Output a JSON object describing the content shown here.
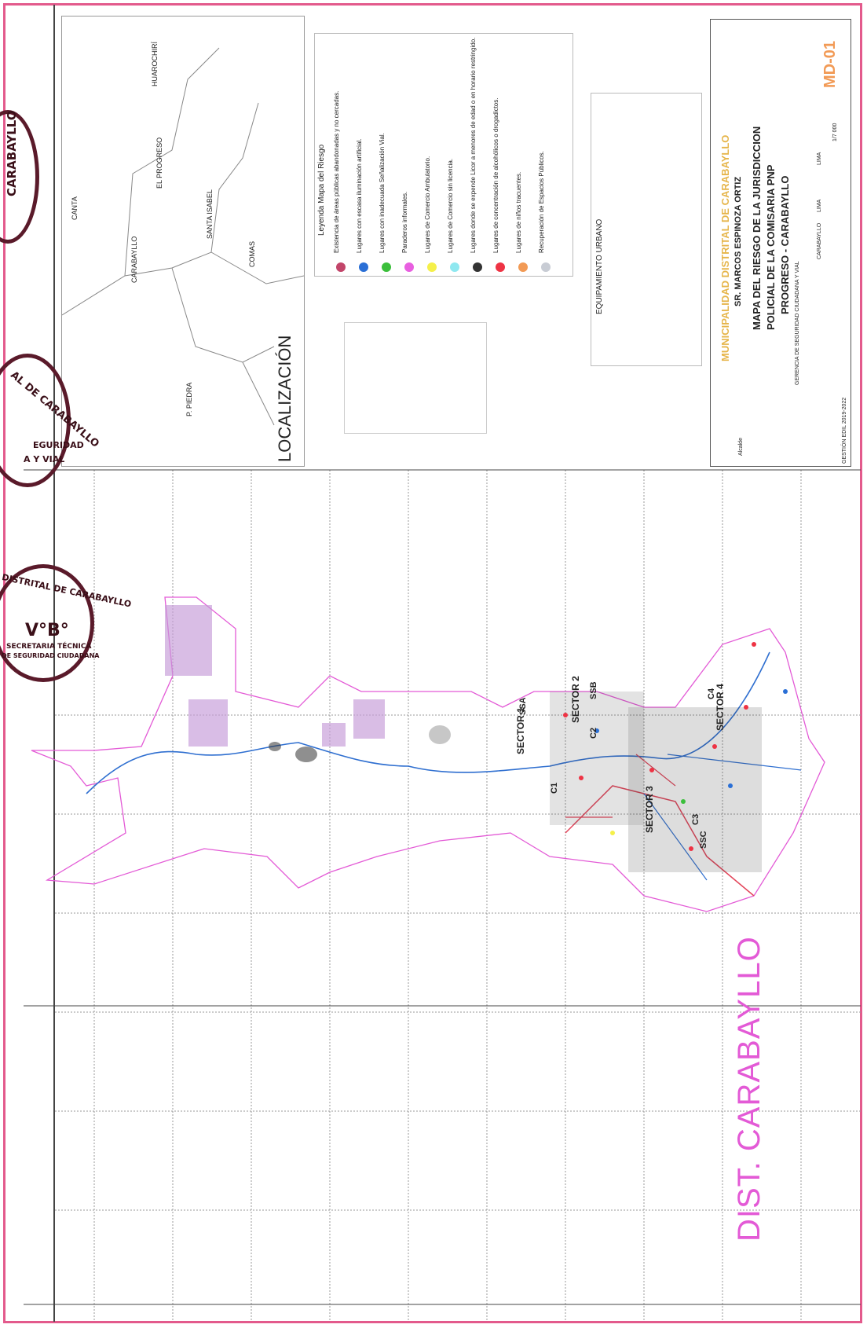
{
  "district_label": "DIST. CARABAYLLO",
  "localizacion": {
    "title": "LOCALIZACIÓN",
    "places": [
      "CANTA",
      "HUAROCHIRÍ",
      "EL PROGRESO",
      "CARABAYLLO",
      "SANTA ISABEL",
      "COMAS",
      "P. PIEDRA"
    ]
  },
  "legend": {
    "title": "Leyenda Mapa del Riesgo",
    "items": [
      {
        "label": "Existencia de áreas públicas abandonadas y no cercadas.",
        "color": "#c2456a"
      },
      {
        "label": "Lugares con escasa iluminación artificial.",
        "color": "#2a6fd6"
      },
      {
        "label": "Lugares con inadecuada Señalización Vial.",
        "color": "#3bbf3b"
      },
      {
        "label": "Paraderos informales.",
        "color": "#e85fe0"
      },
      {
        "label": "Lugares de Comercio Ambulatorio.",
        "color": "#f5f04a"
      },
      {
        "label": "Lugares de Comercio sin licencia.",
        "color": "#8fe8f0"
      },
      {
        "label": "Lugares donde se expende Licor a menores de edad o en horario restringido.",
        "color": "#333333"
      },
      {
        "label": "Lugares de concentración de alcohólicos o drogadictos.",
        "color": "#ee3344"
      },
      {
        "label": "Lugares de niños tracuentes.",
        "color": "#f29a55"
      },
      {
        "label": "Recuperación de Espacios Públicos.",
        "color": "#c8ccd4"
      }
    ]
  },
  "equipamiento": {
    "title": "EQUIPAMIENTO URBANO"
  },
  "title_block": {
    "municipality": "MUNICIPALIDAD DISTRITAL DE CARABAYLLO",
    "mayor": "SR. MARCOS ESPINOZA ORTIZ",
    "map_title_1": "MAPA DEL RIESGO DE LA JURISDICCION",
    "map_title_2": "POLICIAL DE LA COMISARIA PNP",
    "map_title_3": "PROGRESO - CARABAYLLO",
    "sheet_code": "MD-01",
    "consultor": "GERENCIA DE SEGURIDAD CIUDADANA Y VIAL",
    "distrito": "CARABAYLLO",
    "provincia": "LIMA",
    "departamento": "LIMA",
    "escala": "1/7 000",
    "gestion": "GESTIÓN EDIL 2019-2022",
    "alcalde_label": "Alcalde"
  },
  "stamps": {
    "stamp1": "CARABAYLLO",
    "stamp2_a": "AL DE CARABAYLLO",
    "stamp2_b": "EGURIDAD",
    "stamp2_c": "A Y VIAL",
    "stamp3_a": "DISTRITAL DE CARABAYLLO",
    "stamp3_b": "V°B°",
    "stamp3_c": "SECRETARIA TÉCNICA",
    "stamp3_d": "DE SEGURIDAD CIUDADANA"
  },
  "sector_labels": [
    "SECTOR 1",
    "SECTOR 2",
    "SECTOR 3",
    "SECTOR 4",
    "SSA",
    "SSB",
    "SSC",
    "C1",
    "C2",
    "C3",
    "C4"
  ],
  "colors": {
    "frame": "#e35a8c",
    "boundary": "#e35ad6",
    "river": "#2f6fd0",
    "municipality_text": "#e6b54a",
    "sheet_code": "#f29a55"
  }
}
